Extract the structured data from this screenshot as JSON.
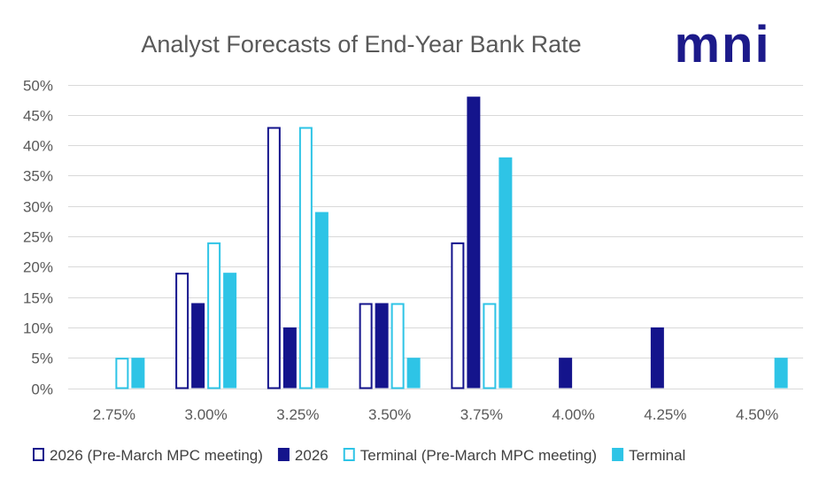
{
  "logo": {
    "text": "mni",
    "color": "#1c1a8a"
  },
  "chart_data": {
    "type": "bar",
    "title": "Analyst Forecasts of End-Year Bank Rate",
    "xlabel": "",
    "ylabel": "",
    "categories": [
      "2.75%",
      "3.00%",
      "3.25%",
      "3.50%",
      "3.75%",
      "4.00%",
      "4.25%",
      "4.50%"
    ],
    "ylim": [
      0,
      50
    ],
    "ytick_step": 5,
    "ytick_suffix": "%",
    "grid": true,
    "legend_position": "bottom",
    "series": [
      {
        "name": "2026 (Pre-March MPC meeting)",
        "style": "outline",
        "color": "#14148c",
        "values": [
          0,
          19,
          43,
          14,
          24,
          0,
          0,
          0
        ]
      },
      {
        "name": "2026",
        "style": "filled",
        "color": "#14148c",
        "values": [
          0,
          14,
          10,
          14,
          48,
          5,
          10,
          0
        ]
      },
      {
        "name": "Terminal (Pre-March MPC meeting)",
        "style": "outline",
        "color": "#2ec4e6",
        "values": [
          5,
          24,
          43,
          14,
          14,
          0,
          0,
          0
        ]
      },
      {
        "name": "Terminal",
        "style": "filled",
        "color": "#2ec4e6",
        "values": [
          5,
          19,
          29,
          5,
          38,
          0,
          0,
          5
        ]
      }
    ]
  }
}
